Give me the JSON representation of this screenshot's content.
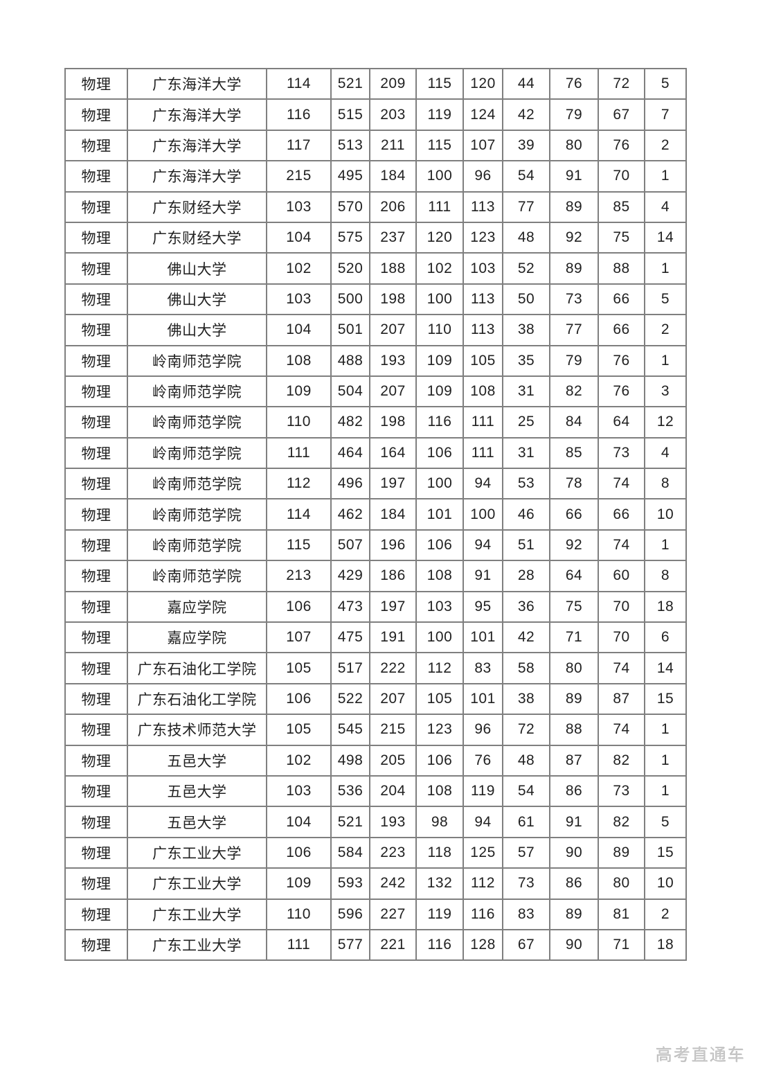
{
  "page": {
    "watermark": "高考直通车"
  },
  "table": {
    "rows": [
      [
        "物理",
        "广东海洋大学",
        "114",
        "521",
        "209",
        "115",
        "120",
        "44",
        "76",
        "72",
        "5"
      ],
      [
        "物理",
        "广东海洋大学",
        "116",
        "515",
        "203",
        "119",
        "124",
        "42",
        "79",
        "67",
        "7"
      ],
      [
        "物理",
        "广东海洋大学",
        "117",
        "513",
        "211",
        "115",
        "107",
        "39",
        "80",
        "76",
        "2"
      ],
      [
        "物理",
        "广东海洋大学",
        "215",
        "495",
        "184",
        "100",
        "96",
        "54",
        "91",
        "70",
        "1"
      ],
      [
        "物理",
        "广东财经大学",
        "103",
        "570",
        "206",
        "111",
        "113",
        "77",
        "89",
        "85",
        "4"
      ],
      [
        "物理",
        "广东财经大学",
        "104",
        "575",
        "237",
        "120",
        "123",
        "48",
        "92",
        "75",
        "14"
      ],
      [
        "物理",
        "佛山大学",
        "102",
        "520",
        "188",
        "102",
        "103",
        "52",
        "89",
        "88",
        "1"
      ],
      [
        "物理",
        "佛山大学",
        "103",
        "500",
        "198",
        "100",
        "113",
        "50",
        "73",
        "66",
        "5"
      ],
      [
        "物理",
        "佛山大学",
        "104",
        "501",
        "207",
        "110",
        "113",
        "38",
        "77",
        "66",
        "2"
      ],
      [
        "物理",
        "岭南师范学院",
        "108",
        "488",
        "193",
        "109",
        "105",
        "35",
        "79",
        "76",
        "1"
      ],
      [
        "物理",
        "岭南师范学院",
        "109",
        "504",
        "207",
        "109",
        "108",
        "31",
        "82",
        "76",
        "3"
      ],
      [
        "物理",
        "岭南师范学院",
        "110",
        "482",
        "198",
        "116",
        "111",
        "25",
        "84",
        "64",
        "12"
      ],
      [
        "物理",
        "岭南师范学院",
        "111",
        "464",
        "164",
        "106",
        "111",
        "31",
        "85",
        "73",
        "4"
      ],
      [
        "物理",
        "岭南师范学院",
        "112",
        "496",
        "197",
        "100",
        "94",
        "53",
        "78",
        "74",
        "8"
      ],
      [
        "物理",
        "岭南师范学院",
        "114",
        "462",
        "184",
        "101",
        "100",
        "46",
        "66",
        "66",
        "10"
      ],
      [
        "物理",
        "岭南师范学院",
        "115",
        "507",
        "196",
        "106",
        "94",
        "51",
        "92",
        "74",
        "1"
      ],
      [
        "物理",
        "岭南师范学院",
        "213",
        "429",
        "186",
        "108",
        "91",
        "28",
        "64",
        "60",
        "8"
      ],
      [
        "物理",
        "嘉应学院",
        "106",
        "473",
        "197",
        "103",
        "95",
        "36",
        "75",
        "70",
        "18"
      ],
      [
        "物理",
        "嘉应学院",
        "107",
        "475",
        "191",
        "100",
        "101",
        "42",
        "71",
        "70",
        "6"
      ],
      [
        "物理",
        "广东石油化工学院",
        "105",
        "517",
        "222",
        "112",
        "83",
        "58",
        "80",
        "74",
        "14"
      ],
      [
        "物理",
        "广东石油化工学院",
        "106",
        "522",
        "207",
        "105",
        "101",
        "38",
        "89",
        "87",
        "15"
      ],
      [
        "物理",
        "广东技术师范大学",
        "105",
        "545",
        "215",
        "123",
        "96",
        "72",
        "88",
        "74",
        "1"
      ],
      [
        "物理",
        "五邑大学",
        "102",
        "498",
        "205",
        "106",
        "76",
        "48",
        "87",
        "82",
        "1"
      ],
      [
        "物理",
        "五邑大学",
        "103",
        "536",
        "204",
        "108",
        "119",
        "54",
        "86",
        "73",
        "1"
      ],
      [
        "物理",
        "五邑大学",
        "104",
        "521",
        "193",
        "98",
        "94",
        "61",
        "91",
        "82",
        "5"
      ],
      [
        "物理",
        "广东工业大学",
        "106",
        "584",
        "223",
        "118",
        "125",
        "57",
        "90",
        "89",
        "15"
      ],
      [
        "物理",
        "广东工业大学",
        "109",
        "593",
        "242",
        "132",
        "112",
        "73",
        "86",
        "80",
        "10"
      ],
      [
        "物理",
        "广东工业大学",
        "110",
        "596",
        "227",
        "119",
        "116",
        "83",
        "89",
        "81",
        "2"
      ],
      [
        "物理",
        "广东工业大学",
        "111",
        "577",
        "221",
        "116",
        "128",
        "67",
        "90",
        "71",
        "18"
      ]
    ]
  }
}
